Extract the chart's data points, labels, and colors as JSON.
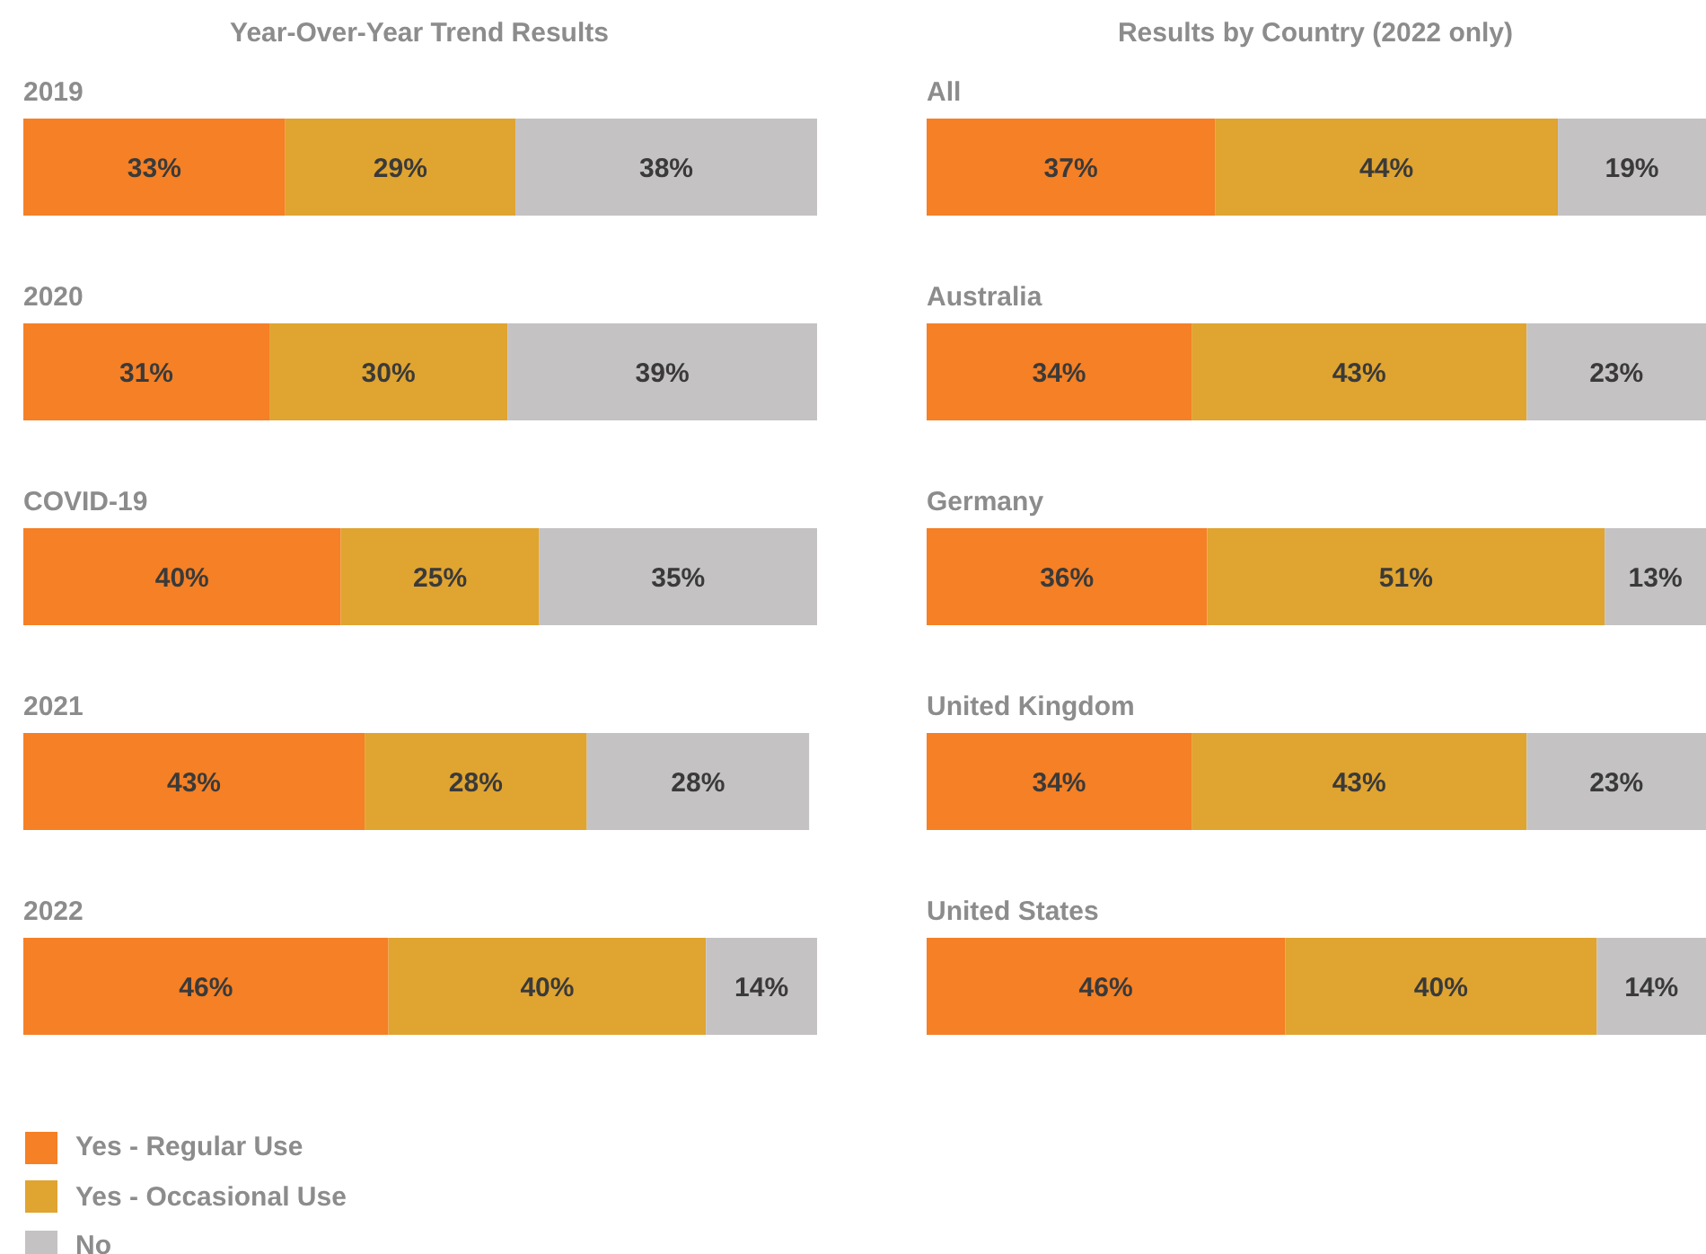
{
  "chart_data": [
    {
      "type": "bar",
      "orientation": "horizontal",
      "stacked": true,
      "title": "Year-Over-Year Trend Results",
      "categories": [
        "2019",
        "2020",
        "COVID-19",
        "2021",
        "2022"
      ],
      "legend": "bottom left",
      "series": [
        {
          "name": "Yes - Regular Use",
          "color": "#f58025",
          "values": [
            33,
            31,
            40,
            43,
            46
          ],
          "value_labels": [
            "33%",
            "31%",
            "40%",
            "43%",
            "46%"
          ]
        },
        {
          "name": "Yes - Occasional Use",
          "color": "#e0a430",
          "values": [
            29,
            30,
            25,
            28,
            40
          ],
          "value_labels": [
            "29%",
            "30%",
            "25%",
            "28%",
            "40%"
          ]
        },
        {
          "name": "No",
          "color": "#c4c2c3",
          "values": [
            38,
            39,
            35,
            28,
            14
          ],
          "value_labels": [
            "38%",
            "39%",
            "35%",
            "28%",
            "14%"
          ]
        }
      ]
    },
    {
      "type": "bar",
      "orientation": "horizontal",
      "stacked": true,
      "title": "Results by Country (2022 only)",
      "categories": [
        "All",
        "Australia",
        "Germany",
        "United Kingdom",
        "United States"
      ],
      "series": [
        {
          "color": "#f58025",
          "values": [
            37,
            34,
            36,
            34,
            46
          ],
          "value_labels": [
            "37%",
            "34%",
            "36%",
            "34%",
            "46%"
          ]
        },
        {
          "color": "#e0a430",
          "values": [
            44,
            43,
            51,
            43,
            40
          ],
          "value_labels": [
            "44%",
            "43%",
            "51%",
            "43%",
            "40%"
          ]
        },
        {
          "color": "#c4c2c3",
          "values": [
            19,
            23,
            13,
            23,
            14
          ],
          "value_labels": [
            "19%",
            "23%",
            "13%",
            "23%",
            "14%"
          ]
        }
      ]
    }
  ]
}
